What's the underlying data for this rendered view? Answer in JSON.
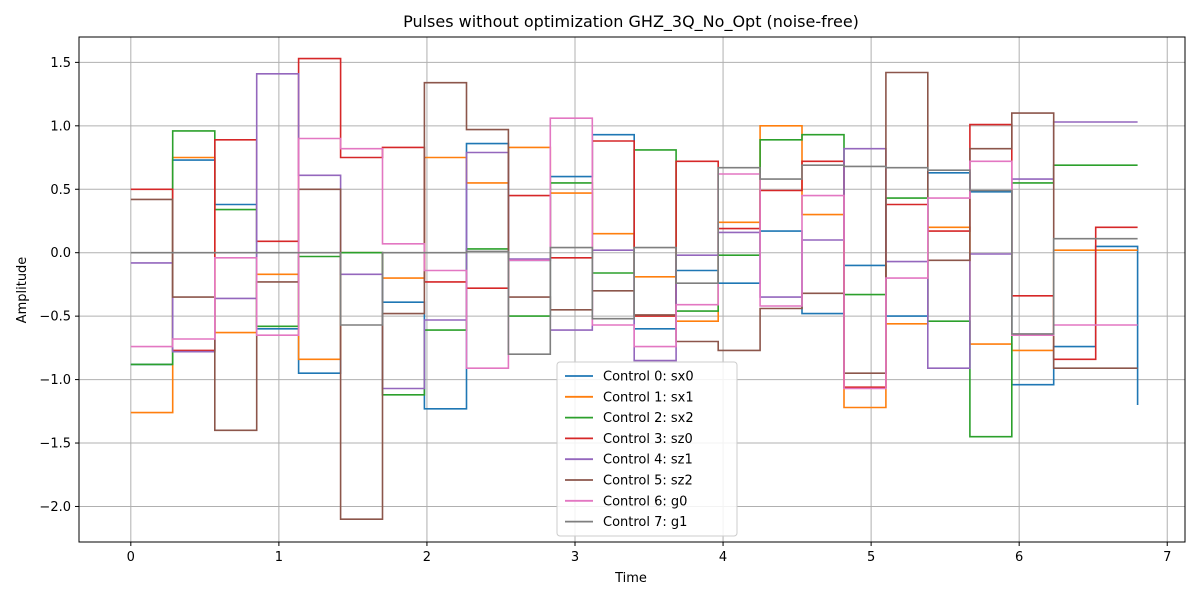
{
  "chart_data": {
    "type": "line",
    "step": "post",
    "title": "Pulses without optimization GHZ_3Q_No_Opt (noise-free)",
    "xlabel": "Time",
    "ylabel": "Amplitude",
    "xlim": [
      -0.35,
      7.12
    ],
    "ylim": [
      -2.28,
      1.7
    ],
    "xticks": [
      0,
      1,
      2,
      3,
      4,
      5,
      6,
      7
    ],
    "yticks": [
      -2.0,
      -1.5,
      -1.0,
      -0.5,
      0.0,
      0.5,
      1.0,
      1.5
    ],
    "ytick_labels": [
      "−2.0",
      "−1.5",
      "−1.0",
      "−0.5",
      "0.0",
      "0.5",
      "1.0",
      "1.5"
    ],
    "grid": true,
    "legend_position": "bottom-center",
    "x": [
      0.0,
      0.283,
      0.567,
      0.85,
      1.133,
      1.417,
      1.7,
      1.983,
      2.267,
      2.55,
      2.833,
      3.117,
      3.4,
      3.683,
      3.967,
      4.25,
      4.533,
      4.817,
      5.1,
      5.383,
      5.667,
      5.95,
      6.233,
      6.517,
      6.8
    ],
    "series": [
      {
        "name": "Control 0: sx0",
        "color": "#1f77b4",
        "values": [
          -0.88,
          0.73,
          0.38,
          -0.6,
          -0.95,
          0.0,
          -0.39,
          -1.23,
          0.86,
          -0.06,
          0.6,
          0.93,
          -0.6,
          -0.14,
          -0.24,
          0.17,
          -0.48,
          -0.1,
          -0.5,
          0.63,
          0.48,
          -1.04,
          -0.74,
          0.05,
          -1.2
        ]
      },
      {
        "name": "Control 1: sx1",
        "color": "#ff7f0e",
        "values": [
          -1.26,
          0.75,
          -0.63,
          -0.17,
          -0.84,
          0.0,
          -0.2,
          0.75,
          0.55,
          0.83,
          0.47,
          0.15,
          -0.19,
          -0.54,
          0.24,
          1.0,
          0.3,
          -1.22,
          -0.56,
          0.2,
          -0.72,
          -0.77,
          0.02,
          0.02,
          0.02
        ]
      },
      {
        "name": "Control 2: sx2",
        "color": "#2ca02c",
        "values": [
          -0.88,
          0.96,
          0.34,
          -0.58,
          -0.03,
          0.0,
          -1.12,
          -0.61,
          0.03,
          -0.5,
          0.55,
          -0.16,
          0.81,
          -0.46,
          -0.02,
          0.89,
          0.93,
          -0.33,
          0.43,
          -0.54,
          -1.45,
          0.55,
          0.69,
          0.69,
          0.69
        ]
      },
      {
        "name": "Control 3: sz0",
        "color": "#d62728",
        "values": [
          0.5,
          -0.77,
          0.89,
          0.09,
          1.53,
          0.75,
          0.83,
          -0.23,
          -0.28,
          0.45,
          -0.04,
          0.88,
          -0.5,
          0.72,
          0.19,
          0.49,
          0.72,
          -1.06,
          0.38,
          0.17,
          1.01,
          -0.34,
          -0.84,
          0.2,
          0.2
        ]
      },
      {
        "name": "Control 4: sz1",
        "color": "#9467bd",
        "values": [
          -0.08,
          -0.78,
          -0.36,
          1.41,
          0.61,
          -0.17,
          -1.07,
          -0.53,
          0.79,
          -0.05,
          -0.61,
          0.02,
          -0.85,
          -0.02,
          0.16,
          -0.35,
          0.1,
          0.82,
          -0.07,
          -0.91,
          -0.01,
          0.58,
          1.03,
          1.03,
          1.03
        ]
      },
      {
        "name": "Control 5: sz2",
        "color": "#8c564b",
        "values": [
          0.42,
          -0.35,
          -1.4,
          -0.23,
          0.5,
          -2.1,
          -0.48,
          1.34,
          0.97,
          -0.35,
          -0.45,
          -0.3,
          -0.49,
          -0.7,
          -0.77,
          -0.44,
          -0.32,
          -0.95,
          1.42,
          -0.06,
          0.82,
          1.1,
          -0.91,
          -0.91,
          -0.91
        ]
      },
      {
        "name": "Control 6: g0",
        "color": "#e377c2",
        "values": [
          -0.74,
          -0.68,
          -0.04,
          -0.65,
          0.9,
          0.82,
          0.07,
          -0.14,
          -0.91,
          -0.06,
          1.06,
          -0.57,
          -0.74,
          -0.41,
          0.62,
          -0.42,
          0.45,
          -1.07,
          -0.2,
          0.43,
          0.72,
          -0.65,
          -0.57,
          -0.57,
          -0.57
        ]
      },
      {
        "name": "Control 7: g1",
        "color": "#7f7f7f",
        "values": [
          0.0,
          0.0,
          0.0,
          0.0,
          0.0,
          -0.57,
          0.0,
          0.0,
          0.01,
          -0.8,
          0.04,
          -0.52,
          0.04,
          -0.24,
          0.67,
          0.58,
          0.69,
          0.68,
          0.67,
          0.65,
          0.49,
          -0.64,
          0.11,
          0.11,
          0.11
        ]
      }
    ]
  }
}
